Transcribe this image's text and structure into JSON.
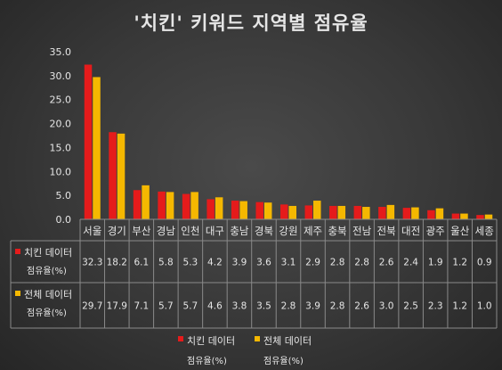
{
  "chart_data": {
    "type": "bar",
    "title": "'치킨' 키워드 지역별 점유율",
    "categories": [
      "서울",
      "경기",
      "부산",
      "경남",
      "인천",
      "대구",
      "충남",
      "경북",
      "강원",
      "제주",
      "충북",
      "전남",
      "전북",
      "대전",
      "광주",
      "울산",
      "세종"
    ],
    "series": [
      {
        "name_lines": [
          "치킨 데이터",
          "점유율(%)"
        ],
        "color": "#e51b1b",
        "values": [
          32.3,
          18.2,
          6.1,
          5.8,
          5.3,
          4.2,
          3.9,
          3.6,
          3.1,
          2.9,
          2.8,
          2.8,
          2.6,
          2.4,
          1.9,
          1.2,
          0.9
        ],
        "value_labels": [
          "32.3",
          "18.2",
          "6.1",
          "5.8",
          "5.3",
          "4.2",
          "3.9",
          "3.6",
          "3.1",
          "2.9",
          "2.8",
          "2.8",
          "2.6",
          "2.4",
          "1.9",
          "1.2",
          "0.9"
        ]
      },
      {
        "name_lines": [
          "전체 데이터",
          "점유율(%)"
        ],
        "color": "#f5b800",
        "values": [
          29.7,
          17.9,
          7.1,
          5.7,
          5.7,
          4.6,
          3.8,
          3.5,
          2.8,
          3.9,
          2.8,
          2.6,
          3.0,
          2.5,
          2.3,
          1.2,
          1.0
        ],
        "value_labels": [
          "29.7",
          "17.9",
          "7.1",
          "5.7",
          "5.7",
          "4.6",
          "3.8",
          "3.5",
          "2.8",
          "3.9",
          "2.8",
          "2.6",
          "3.0",
          "2.5",
          "2.3",
          "1.2",
          "1.0"
        ]
      }
    ],
    "ylim": [
      0,
      35
    ],
    "yticks": [
      "0.0",
      "5.0",
      "10.0",
      "15.0",
      "20.0",
      "25.0",
      "30.0",
      "35.0"
    ],
    "grid": false,
    "legend": "bottom",
    "data_table": true
  }
}
